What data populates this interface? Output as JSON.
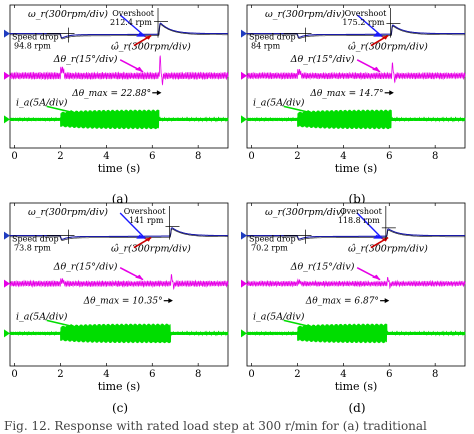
{
  "caption_text": "Fig. 12.     Response with rated load step at 300 r/min for (a) traditional",
  "chart_data": [
    {
      "panel": "(a)",
      "type": "line",
      "xlabel": "time (s)",
      "xlim": [
        -0.2,
        9.3
      ],
      "xticks": [
        0,
        2,
        4,
        6,
        8
      ],
      "labels": {
        "speed": "ω_r(300rpm/div)",
        "speed_est": "ω̂_r(300rpm/div)",
        "theta": "Δθ_r(15°/div)",
        "current": "i_a(5A/div)"
      },
      "annotations": {
        "drop_label": "Speed drop",
        "drop_value": "94.8 rpm",
        "over_label": "Overshoot",
        "over_value": "212.4 rpm",
        "dtheta_max": "Δθ_max = 22.88°"
      },
      "events": {
        "step_on": 2.0,
        "step_off": 6.3
      },
      "speed": {
        "base_rpm": 300,
        "drop_rpm": 94.8,
        "overshoot_rpm": 212.4
      },
      "theta": {
        "peak_deg": 22.88,
        "ripple_deg": 2.0
      },
      "current": {
        "noload_amp": 1.0,
        "load_amp": 6.5
      }
    },
    {
      "panel": "(b)",
      "type": "line",
      "xlabel": "time (s)",
      "xlim": [
        -0.2,
        9.3
      ],
      "xticks": [
        0,
        2,
        4,
        6,
        8
      ],
      "labels": {
        "speed": "ω_r(300rpm/div)",
        "speed_est": "ω̂_r(300rpm/div)",
        "theta": "Δθ_r(15°/div)",
        "current": "i_a(5A/div)"
      },
      "annotations": {
        "drop_label": "Speed drop",
        "drop_value": "84 rpm",
        "over_label": "Overshoot",
        "over_value": "175.2 rpm",
        "dtheta_max": "Δθ_max = 14.7°"
      },
      "events": {
        "step_on": 2.0,
        "step_off": 6.1
      },
      "speed": {
        "base_rpm": 300,
        "drop_rpm": 84,
        "overshoot_rpm": 175.2
      },
      "theta": {
        "peak_deg": 14.7,
        "ripple_deg": 1.8
      },
      "current": {
        "noload_amp": 1.0,
        "load_amp": 6.5
      }
    },
    {
      "panel": "(c)",
      "type": "line",
      "xlabel": "time (s)",
      "xlim": [
        -0.2,
        9.3
      ],
      "xticks": [
        0,
        2,
        4,
        6,
        8
      ],
      "labels": {
        "speed": "ω_r(300rpm/div)",
        "speed_est": "ω̂_r(300rpm/div)",
        "theta": "Δθ_r(15°/div)",
        "current": "i_a(5A/div)"
      },
      "annotations": {
        "drop_label": "Speed drop",
        "drop_value": "73.8 rpm",
        "over_label": "Overshoot",
        "over_value": "141 rpm",
        "dtheta_max": "Δθ_max = 10.35°"
      },
      "events": {
        "step_on": 2.0,
        "step_off": 6.8
      },
      "speed": {
        "base_rpm": 300,
        "drop_rpm": 73.8,
        "overshoot_rpm": 141
      },
      "theta": {
        "peak_deg": 10.35,
        "ripple_deg": 1.6
      },
      "current": {
        "noload_amp": 1.0,
        "load_amp": 6.5
      }
    },
    {
      "panel": "(d)",
      "type": "line",
      "xlabel": "time (s)",
      "xlim": [
        -0.2,
        9.3
      ],
      "xticks": [
        0,
        2,
        4,
        6,
        8
      ],
      "labels": {
        "speed": "ω_r(300rpm/div)",
        "speed_est": "ω̂_r(300rpm/div)",
        "theta": "Δθ_r(15°/div)",
        "current": "i_a(5A/div)"
      },
      "annotations": {
        "drop_label": "Speed drop",
        "drop_value": "70.2 rpm",
        "over_label": "Overshoot",
        "over_value": "118.8 rpm",
        "dtheta_max": "Δθ_max = 6.87°"
      },
      "events": {
        "step_on": 2.0,
        "step_off": 5.9
      },
      "speed": {
        "base_rpm": 300,
        "drop_rpm": 70.2,
        "overshoot_rpm": 118.8
      },
      "theta": {
        "peak_deg": 6.87,
        "ripple_deg": 1.4
      },
      "current": {
        "noload_amp": 1.0,
        "load_amp": 6.5
      }
    }
  ]
}
